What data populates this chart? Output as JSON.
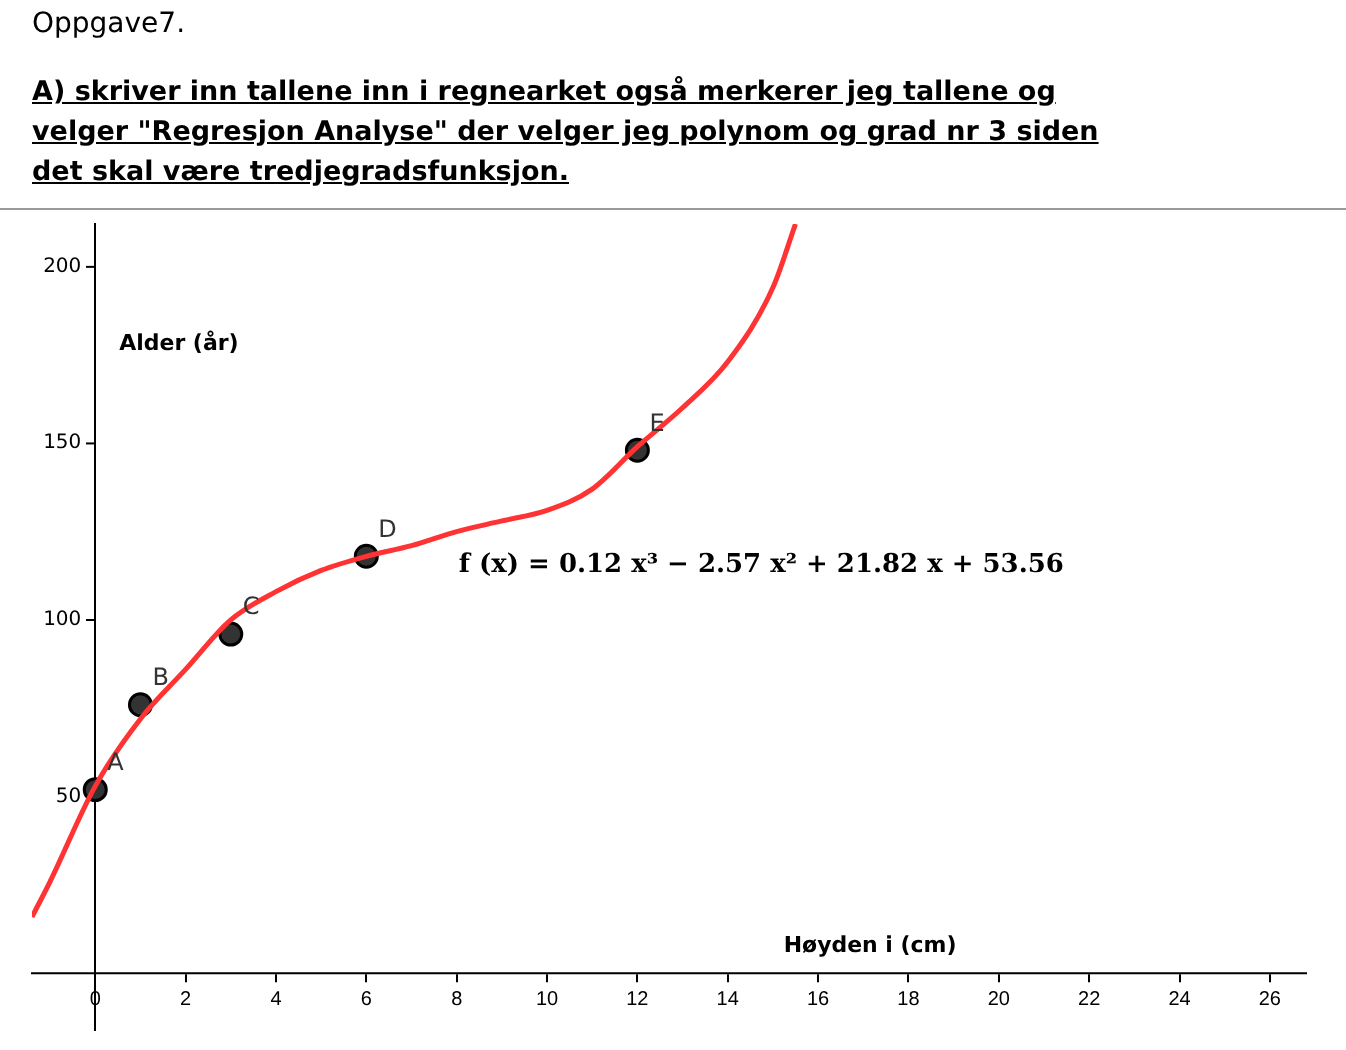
{
  "chart_data": {
    "type": "line",
    "title": "Oppgave7.",
    "subtitle": "A) skriver inn tallene inn i regnearket også merkerer jeg tallene og velger \"Regresjon Analyse\" der velger jeg polynom og grad nr 3 siden det skal være tredjegradsfunksjon.",
    "xlabel": "Høyden i (cm)",
    "ylabel": "Alder (år)",
    "series": [
      {
        "type": "line",
        "color": "#ff3333",
        "marker": "none",
        "x": [
          -1.4,
          -1,
          0,
          1,
          2,
          3,
          4,
          5,
          6,
          7,
          8,
          9,
          10,
          11,
          12,
          13,
          14,
          15,
          15.5
        ],
        "values": [
          16,
          26,
          53,
          72,
          86,
          100,
          108,
          114,
          118,
          121,
          125,
          128,
          131,
          137,
          149,
          160,
          173,
          194,
          212
        ]
      },
      {
        "type": "scatter",
        "color": "#333333",
        "marker": "circle",
        "x": [
          0,
          1,
          3,
          6,
          12
        ],
        "values": [
          52,
          76,
          96,
          118,
          148
        ]
      }
    ],
    "annotations": [
      {
        "text": "A",
        "x": 0,
        "y": 52
      },
      {
        "text": "B",
        "x": 1,
        "y": 76
      },
      {
        "text": "C",
        "x": 3,
        "y": 96
      },
      {
        "text": "D",
        "x": 6,
        "y": 118
      },
      {
        "text": "E",
        "x": 12,
        "y": 148
      },
      "f (x) = 0.12 x³ − 2.57 x² + 21.82 x + 53.56"
    ],
    "xlim": [
      -1.4,
      26.8
    ],
    "ylim": [
      -16,
      212
    ],
    "xticks": [
      0,
      2,
      4,
      6,
      8,
      10,
      12,
      14,
      16,
      18,
      20,
      22,
      24,
      26
    ],
    "yticks": [
      50,
      100,
      150,
      200
    ],
    "grid": false,
    "legend": false
  }
}
